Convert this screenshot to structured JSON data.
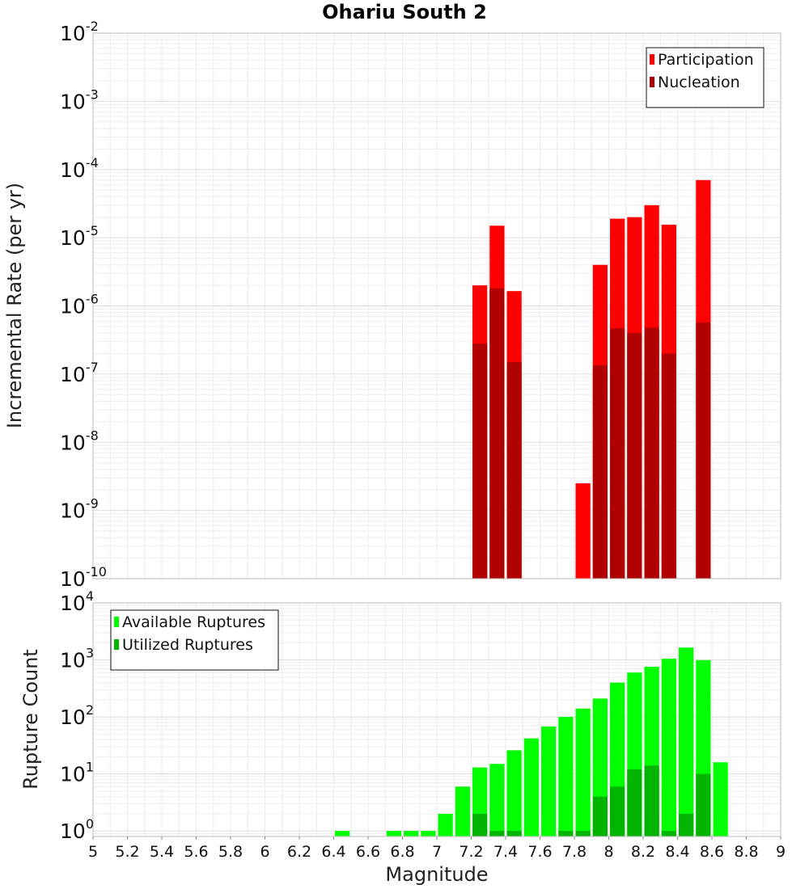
{
  "chart_data": [
    {
      "type": "bar",
      "title": "Ohariu South 2",
      "xlabel": "",
      "ylabel": "Incremental Rate (per yr)",
      "y_scale": "log",
      "xlim": [
        5,
        9
      ],
      "ylim": [
        1e-10,
        0.01
      ],
      "x_tick_labels": [
        "5",
        "5.2",
        "5.4",
        "5.6",
        "5.8",
        "6",
        "6.2",
        "6.4",
        "6.6",
        "6.8",
        "7",
        "7.2",
        "7.4",
        "7.6",
        "7.8",
        "8",
        "8.2",
        "8.4",
        "8.6",
        "8.8",
        "9"
      ],
      "y_tick_exponents": [
        -10,
        -9,
        -8,
        -7,
        -6,
        -5,
        -4,
        -3,
        -2
      ],
      "grid": true,
      "legend_position": "top-right",
      "bar_width": 0.1,
      "series": [
        {
          "name": "Participation",
          "color": "#ff0000",
          "x": [
            7.25,
            7.35,
            7.45,
            7.85,
            7.95,
            8.05,
            8.15,
            8.25,
            8.35,
            8.55
          ],
          "values": [
            2e-06,
            1.5e-05,
            1.65e-06,
            2.5e-09,
            4e-06,
            1.9e-05,
            2e-05,
            3e-05,
            1.55e-05,
            7e-05
          ]
        },
        {
          "name": "Nucleation",
          "color": "#b00000",
          "x": [
            7.25,
            7.35,
            7.45,
            7.95,
            8.05,
            8.15,
            8.25,
            8.35,
            8.55
          ],
          "values": [
            2.8e-07,
            1.8e-06,
            1.5e-07,
            1.35e-07,
            4.7e-07,
            4e-07,
            4.8e-07,
            2e-07,
            5.7e-07
          ]
        }
      ]
    },
    {
      "type": "bar",
      "title": "",
      "xlabel": "Magnitude",
      "ylabel": "Rupture Count",
      "y_scale": "log",
      "xlim": [
        5,
        9
      ],
      "ylim": [
        0.8,
        10000
      ],
      "x_tick_labels": [
        "5",
        "5.2",
        "5.4",
        "5.6",
        "5.8",
        "6",
        "6.2",
        "6.4",
        "6.6",
        "6.8",
        "7",
        "7.2",
        "7.4",
        "7.6",
        "7.8",
        "8",
        "8.2",
        "8.4",
        "8.6",
        "8.8",
        "9"
      ],
      "y_tick_exponents": [
        0,
        1,
        2,
        3,
        4
      ],
      "grid": true,
      "legend_position": "top-left",
      "bar_width": 0.1,
      "series": [
        {
          "name": "Available Ruptures",
          "color": "#00ff00",
          "x": [
            6.45,
            6.75,
            6.85,
            6.95,
            7.05,
            7.15,
            7.25,
            7.35,
            7.45,
            7.55,
            7.65,
            7.75,
            7.85,
            7.95,
            8.05,
            8.15,
            8.25,
            8.35,
            8.45,
            8.55,
            8.65
          ],
          "values": [
            1,
            1,
            1,
            1,
            2,
            6,
            13,
            15,
            26,
            42,
            68,
            100,
            140,
            210,
            400,
            600,
            760,
            1050,
            1650,
            990,
            16
          ]
        },
        {
          "name": "Utilized Ruptures",
          "color": "#00b400",
          "x": [
            7.25,
            7.35,
            7.45,
            7.75,
            7.85,
            7.95,
            8.05,
            8.15,
            8.25,
            8.35,
            8.45,
            8.55
          ],
          "values": [
            2,
            1,
            1,
            1,
            1,
            4,
            6,
            12,
            14,
            1,
            2,
            10
          ]
        }
      ]
    }
  ]
}
